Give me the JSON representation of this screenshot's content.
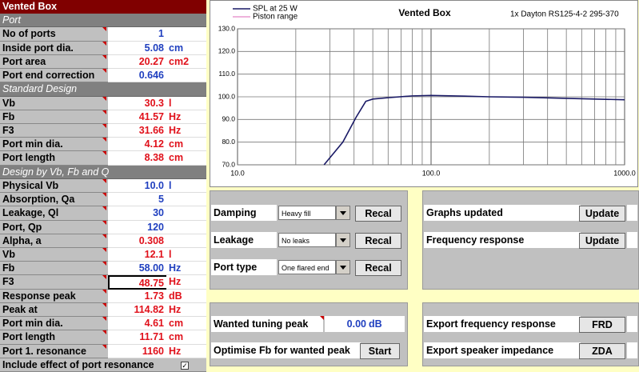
{
  "sheet": {
    "title": "Vented Box",
    "rows": [
      {
        "section": "Port"
      },
      {
        "label": "No of ports",
        "value": "1",
        "color": "#1f3fbf"
      },
      {
        "label": "Inside port dia.",
        "value": "5.08",
        "unit": "cm",
        "color": "#1f3fbf"
      },
      {
        "label": "Port area",
        "value": "20.27",
        "unit": "cm2",
        "color": "#e0101a"
      },
      {
        "label": "Port end correction",
        "value": "0.646",
        "color": "#1f3fbf"
      },
      {
        "section": "Standard Design"
      },
      {
        "label": "Vb",
        "value": "30.3",
        "unit": "l",
        "color": "#e0101a"
      },
      {
        "label": "Fb",
        "value": "41.57",
        "unit": "Hz",
        "color": "#e0101a"
      },
      {
        "label": "F3",
        "value": "31.66",
        "unit": "Hz",
        "color": "#e0101a"
      },
      {
        "label": "Port min dia.",
        "value": "4.12",
        "unit": "cm",
        "color": "#e0101a"
      },
      {
        "label": "Port length",
        "value": "8.38",
        "unit": "cm",
        "color": "#e0101a"
      },
      {
        "section": "Design by Vb, Fb and Q"
      },
      {
        "label": "Physical Vb",
        "value": "10.0",
        "unit": "l",
        "color": "#1f3fbf"
      },
      {
        "label": "Absorption, Qa",
        "value": "5",
        "color": "#1f3fbf"
      },
      {
        "label": "Leakage, Ql",
        "value": "30",
        "color": "#1f3fbf"
      },
      {
        "label": "Port, Qp",
        "value": "120",
        "color": "#1f3fbf"
      },
      {
        "label": "Alpha, a",
        "value": "0.308",
        "color": "#e0101a"
      },
      {
        "label": "Vb",
        "value": "12.1",
        "unit": "l",
        "color": "#e0101a"
      },
      {
        "label": "Fb",
        "value": "58.00",
        "unit": "Hz",
        "color": "#1f3fbf"
      },
      {
        "label": "F3",
        "value": "48.75",
        "unit": "Hz",
        "color": "#e0101a",
        "selected": true
      },
      {
        "label": "Response peak",
        "value": "1.73",
        "unit": "dB",
        "color": "#e0101a"
      },
      {
        "label": "Peak at",
        "value": "114.82",
        "unit": "Hz",
        "color": "#e0101a"
      },
      {
        "label": "Port min dia.",
        "value": "4.61",
        "unit": "cm",
        "color": "#e0101a"
      },
      {
        "label": "Port length",
        "value": "11.71",
        "unit": "cm",
        "color": "#e0101a"
      },
      {
        "label": "Port 1. resonance",
        "value": "1160",
        "unit": "Hz",
        "color": "#e0101a"
      },
      {
        "label": "Include effect of port resonance",
        "checkbox": true
      }
    ]
  },
  "chart_data": {
    "type": "line",
    "title": "Vented Box",
    "subtitle": "1x Dayton RS125-4-2 295-370",
    "x": [
      28,
      35,
      41,
      46,
      50,
      60,
      80,
      100,
      150,
      200,
      300,
      500,
      1000
    ],
    "series": [
      {
        "name": "SPL at 25 W",
        "color": "#1a1a66",
        "values": [
          70,
          80,
          91,
          98,
          99,
          99.6,
          100.4,
          100.6,
          100.3,
          100,
          99.8,
          99.3,
          98.7
        ]
      },
      {
        "name": "Piston range",
        "color": "#e89ad0",
        "values": [
          null,
          null,
          null,
          null,
          null,
          null,
          null,
          null,
          null,
          null,
          null,
          null,
          null
        ]
      }
    ],
    "log_x": true,
    "xlim": [
      10,
      1000
    ],
    "xticks": [
      {
        "value": 10,
        "label": "10.0"
      },
      {
        "value": 100,
        "label": "100.0"
      },
      {
        "value": 1000,
        "label": "1000.0"
      }
    ],
    "x_minor_grid": [
      20,
      30,
      40,
      50,
      60,
      70,
      80,
      90,
      200,
      300,
      400,
      500,
      600,
      700,
      800,
      900
    ],
    "ylim": [
      70,
      130
    ],
    "yticks": [
      {
        "value": 70,
        "label": "70.0"
      },
      {
        "value": 80,
        "label": "80.0"
      },
      {
        "value": 90,
        "label": "90.0"
      },
      {
        "value": 100,
        "label": "100.0"
      },
      {
        "value": 110,
        "label": "110.0"
      },
      {
        "value": 120,
        "label": "120.0"
      },
      {
        "value": 130,
        "label": "130.0"
      }
    ],
    "grid": true,
    "legend": "top-left"
  },
  "panels": [
    {
      "rows": [
        {
          "label": "Damping",
          "select": "Heavy fill",
          "button": "Recal"
        },
        {
          "label": "Leakage",
          "select": "No leaks",
          "button": "Recal"
        },
        {
          "label": "Port type",
          "select": "One flared end",
          "button": "Recal"
        }
      ]
    },
    {
      "rows": [
        {
          "label": "Graphs updated",
          "button": "Update"
        },
        {
          "label": "Frequency response",
          "button": "Update"
        }
      ]
    },
    {
      "rows": [
        {
          "label": "Wanted tuning peak",
          "value": "0.00",
          "unit": "dB"
        },
        {
          "label": "Optimise Fb for wanted peak",
          "button": "Start"
        }
      ]
    },
    {
      "rows": [
        {
          "label": "Export frequency response",
          "button": "FRD"
        },
        {
          "label": "Export speaker impedance",
          "button": "ZDA"
        }
      ]
    }
  ]
}
